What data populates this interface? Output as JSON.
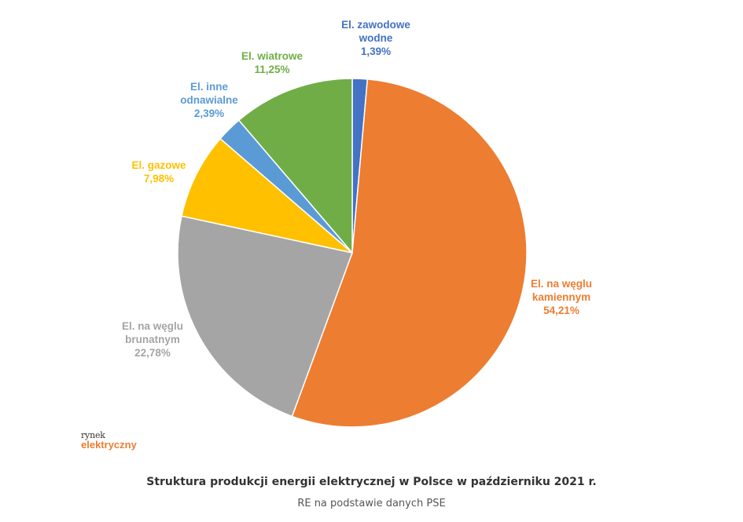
{
  "chart_data": {
    "type": "pie",
    "title": "",
    "slices": [
      {
        "name": "El. zawodowe wodne",
        "lines": [
          "El. zawodowe",
          "wodne"
        ],
        "value_label": "1,39%",
        "value": 1.39,
        "color": "#4472c4"
      },
      {
        "name": "El. na węglu kamiennym",
        "lines": [
          "El. na węglu",
          "kamiennym"
        ],
        "value_label": "54,21%",
        "value": 54.21,
        "color": "#ed7d31"
      },
      {
        "name": "El. na węglu brunatnym",
        "lines": [
          "El. na węglu",
          "brunatnym"
        ],
        "value_label": "22,78%",
        "value": 22.78,
        "color": "#a5a5a5"
      },
      {
        "name": "El. gazowe",
        "lines": [
          "El. gazowe"
        ],
        "value_label": "7,98%",
        "value": 7.98,
        "color": "#ffc000"
      },
      {
        "name": "El. inne odnawialne",
        "lines": [
          "El. inne",
          "odnawialne"
        ],
        "value_label": "2,39%",
        "value": 2.39,
        "color": "#5b9bd5"
      },
      {
        "name": "El. wiatrowe",
        "lines": [
          "El. wiatrowe"
        ],
        "value_label": "11,25%",
        "value": 11.25,
        "color": "#70ad47"
      }
    ]
  },
  "logo": {
    "top": "rynek",
    "bottom": "elektryczny"
  },
  "caption": {
    "title": "Struktura produkcji energii elektrycznej w Polsce w październiku 2021 r.",
    "source": "RE na podstawie danych PSE"
  }
}
